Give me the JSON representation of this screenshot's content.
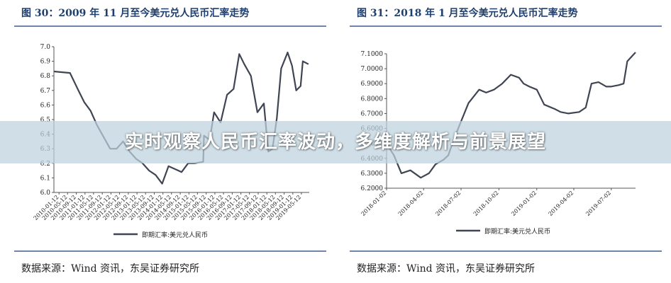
{
  "banner": {
    "headline": "实时观察人民币汇率波动，多维度解析与前景展望"
  },
  "figures": [
    {
      "title": "图 30：2009 年 11 月至今美元兑人民币汇率走势",
      "source": "数据来源：Wind 资讯，东吴证券研究所"
    },
    {
      "title": "图 31：2018 年 1 月至今美元兑人民币汇率走势",
      "source": "数据来源：Wind 资讯，东吴证券研究所"
    }
  ],
  "colors": {
    "line": "#3f4552",
    "title": "#1f3f6e",
    "rule": "#6f86a8"
  },
  "chart_data": [
    {
      "type": "line",
      "title": "图 30：2009 年 11 月至今美元兑人民币汇率走势",
      "xlabel": "",
      "ylabel": "",
      "ylim": [
        6.0,
        7.0
      ],
      "yticks": [
        6.0,
        6.1,
        6.2,
        6.3,
        6.4,
        6.5,
        6.6,
        6.7,
        6.8,
        6.9,
        7.0
      ],
      "ytick_labels": [
        "6.0",
        "6.1",
        "6.2",
        "6.3",
        "6.4",
        "6.5",
        "6.6",
        "6.7",
        "6.8",
        "6.9",
        "7.0"
      ],
      "xlim": [
        "2009-11-01",
        "2019-08-31"
      ],
      "xtick_labels": [
        "2010-01-12",
        "2010-05-12",
        "2010-09-12",
        "2011-01-12",
        "2011-05-12",
        "2011-09-12",
        "2012-01-12",
        "2012-05-12",
        "2012-09-12",
        "2013-01-12",
        "2013-05-12",
        "2013-09-12",
        "2014-01-12",
        "2014-05-12",
        "2014-09-12",
        "2015-01-12",
        "2015-05-12",
        "2015-09-12",
        "2016-01-12",
        "2016-05-12",
        "2016-09-12",
        "2017-01-12",
        "2017-05-12",
        "2017-09-12",
        "2018-01-12",
        "2018-05-12",
        "2018-09-12",
        "2019-01-12",
        "2019-05-12"
      ],
      "legend": "bottom",
      "grid": false,
      "series": [
        {
          "name": "即期汇率:美元兑人民币",
          "x": [
            "2009-11-01",
            "2010-06-15",
            "2010-10-01",
            "2011-01-01",
            "2011-04-01",
            "2011-07-01",
            "2011-10-01",
            "2012-01-01",
            "2012-04-01",
            "2012-07-01",
            "2012-10-01",
            "2013-01-01",
            "2013-04-01",
            "2013-07-01",
            "2013-10-01",
            "2014-01-01",
            "2014-04-01",
            "2014-07-01",
            "2014-10-01",
            "2015-01-01",
            "2015-04-01",
            "2015-08-01",
            "2015-08-12",
            "2015-11-01",
            "2016-01-01",
            "2016-04-01",
            "2016-07-01",
            "2016-10-01",
            "2016-12-20",
            "2017-03-01",
            "2017-06-01",
            "2017-09-01",
            "2017-12-01",
            "2018-02-01",
            "2018-04-01",
            "2018-06-01",
            "2018-08-01",
            "2018-10-31",
            "2019-01-01",
            "2019-03-01",
            "2019-05-01",
            "2019-06-01",
            "2019-08-20"
          ],
          "y": [
            6.83,
            6.82,
            6.71,
            6.62,
            6.56,
            6.46,
            6.38,
            6.3,
            6.3,
            6.35,
            6.28,
            6.23,
            6.2,
            6.15,
            6.12,
            6.06,
            6.18,
            6.16,
            6.14,
            6.2,
            6.2,
            6.21,
            6.39,
            6.36,
            6.55,
            6.48,
            6.67,
            6.71,
            6.95,
            6.88,
            6.8,
            6.55,
            6.61,
            6.28,
            6.3,
            6.51,
            6.85,
            6.96,
            6.87,
            6.7,
            6.73,
            6.9,
            6.88
          ]
        }
      ]
    },
    {
      "type": "line",
      "title": "图 31：2018 年 1 月至今美元兑人民币汇率走势",
      "xlabel": "",
      "ylabel": "",
      "ylim": [
        6.2,
        7.1
      ],
      "yticks": [
        6.2,
        6.3,
        6.4,
        6.5,
        6.6,
        6.7,
        6.8,
        6.9,
        7.0,
        7.1
      ],
      "ytick_labels": [
        "6.2000",
        "6.3000",
        "6.4000",
        "6.5000",
        "6.6000",
        "6.7000",
        "6.8000",
        "6.9000",
        "7.0000",
        "7.1000"
      ],
      "xlim": [
        "2018-01-02",
        "2019-08-30"
      ],
      "xtick_labels": [
        "2018-01-02",
        "2018-04-02",
        "2018-07-02",
        "2018-10-02",
        "2019-01-02",
        "2019-04-02",
        "2019-07-02"
      ],
      "legend": "bottom",
      "grid": false,
      "series": [
        {
          "name": "即期汇率:美元兑人民币",
          "x": [
            "2018-01-02",
            "2018-01-20",
            "2018-02-07",
            "2018-03-01",
            "2018-03-26",
            "2018-04-15",
            "2018-05-01",
            "2018-05-20",
            "2018-06-01",
            "2018-06-15",
            "2018-07-01",
            "2018-07-20",
            "2018-08-15",
            "2018-09-01",
            "2018-09-20",
            "2018-10-10",
            "2018-10-31",
            "2018-11-20",
            "2018-12-01",
            "2018-12-15",
            "2019-01-02",
            "2019-01-20",
            "2019-02-15",
            "2019-03-01",
            "2019-03-20",
            "2019-04-15",
            "2019-05-01",
            "2019-05-15",
            "2019-06-01",
            "2019-06-20",
            "2019-07-01",
            "2019-07-20",
            "2019-08-01",
            "2019-08-10",
            "2019-08-30"
          ],
          "y": [
            6.5,
            6.42,
            6.3,
            6.32,
            6.27,
            6.3,
            6.36,
            6.39,
            6.42,
            6.53,
            6.64,
            6.77,
            6.86,
            6.84,
            6.86,
            6.9,
            6.96,
            6.94,
            6.9,
            6.88,
            6.86,
            6.76,
            6.73,
            6.71,
            6.7,
            6.71,
            6.74,
            6.9,
            6.91,
            6.88,
            6.88,
            6.89,
            6.9,
            7.05,
            7.15
          ]
        }
      ]
    }
  ]
}
